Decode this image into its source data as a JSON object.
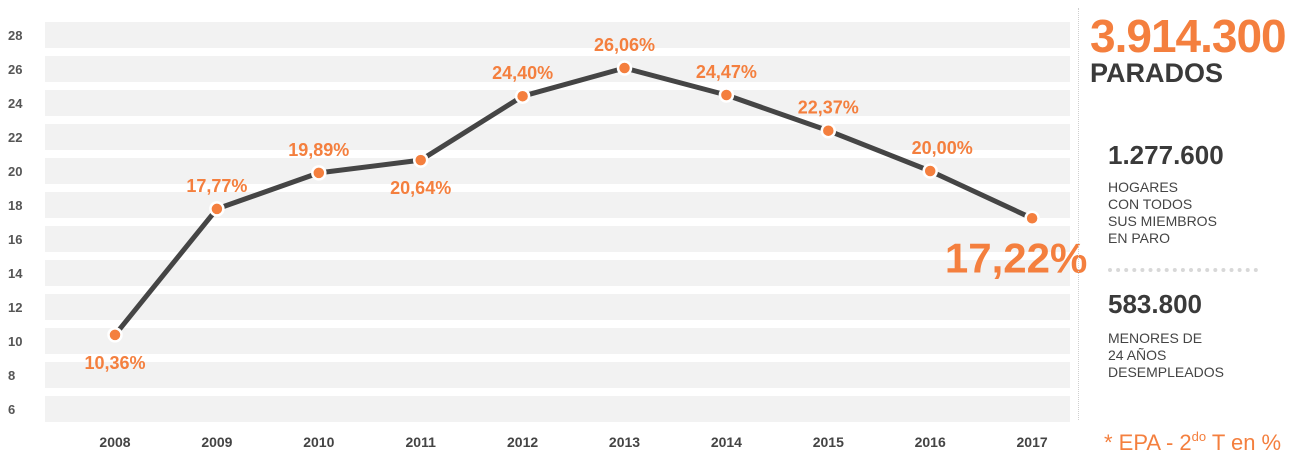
{
  "chart_data": {
    "type": "line",
    "categories": [
      "2008",
      "2009",
      "2010",
      "2011",
      "2012",
      "2013",
      "2014",
      "2015",
      "2016",
      "2017"
    ],
    "values": [
      10.36,
      17.77,
      19.89,
      20.64,
      24.4,
      26.06,
      24.47,
      22.37,
      20.0,
      17.22
    ],
    "value_labels": [
      "10,36%",
      "17,77%",
      "19,89%",
      "20,64%",
      "24,40%",
      "26,06%",
      "24,47%",
      "22,37%",
      "20,00%",
      "17,22%"
    ],
    "yticks": [
      "28",
      "26",
      "24",
      "22",
      "20",
      "18",
      "16",
      "14",
      "12",
      "10",
      "8",
      "6"
    ],
    "ylim": [
      5,
      29
    ],
    "grid": true,
    "line_color": "#454545",
    "marker_color": "#f47f3e",
    "label_color": "#f47f3e",
    "band_color": "#f2f2f2"
  },
  "sidebar": {
    "headline_number": "3.914.300",
    "headline_label": "PARADOS",
    "stat1_number": "1.277.600",
    "stat1_text": "HOGARES\nCON TODOS\nSUS MIEMBROS\nEN PARO",
    "stat2_number": "583.800",
    "stat2_text": "MENORES DE\n24 AÑOS\nDESEMPLEADOS",
    "footnote_pre": "* EPA - 2",
    "footnote_sup": "do",
    "footnote_post": " T en %",
    "accent_color": "#f47f3e"
  }
}
